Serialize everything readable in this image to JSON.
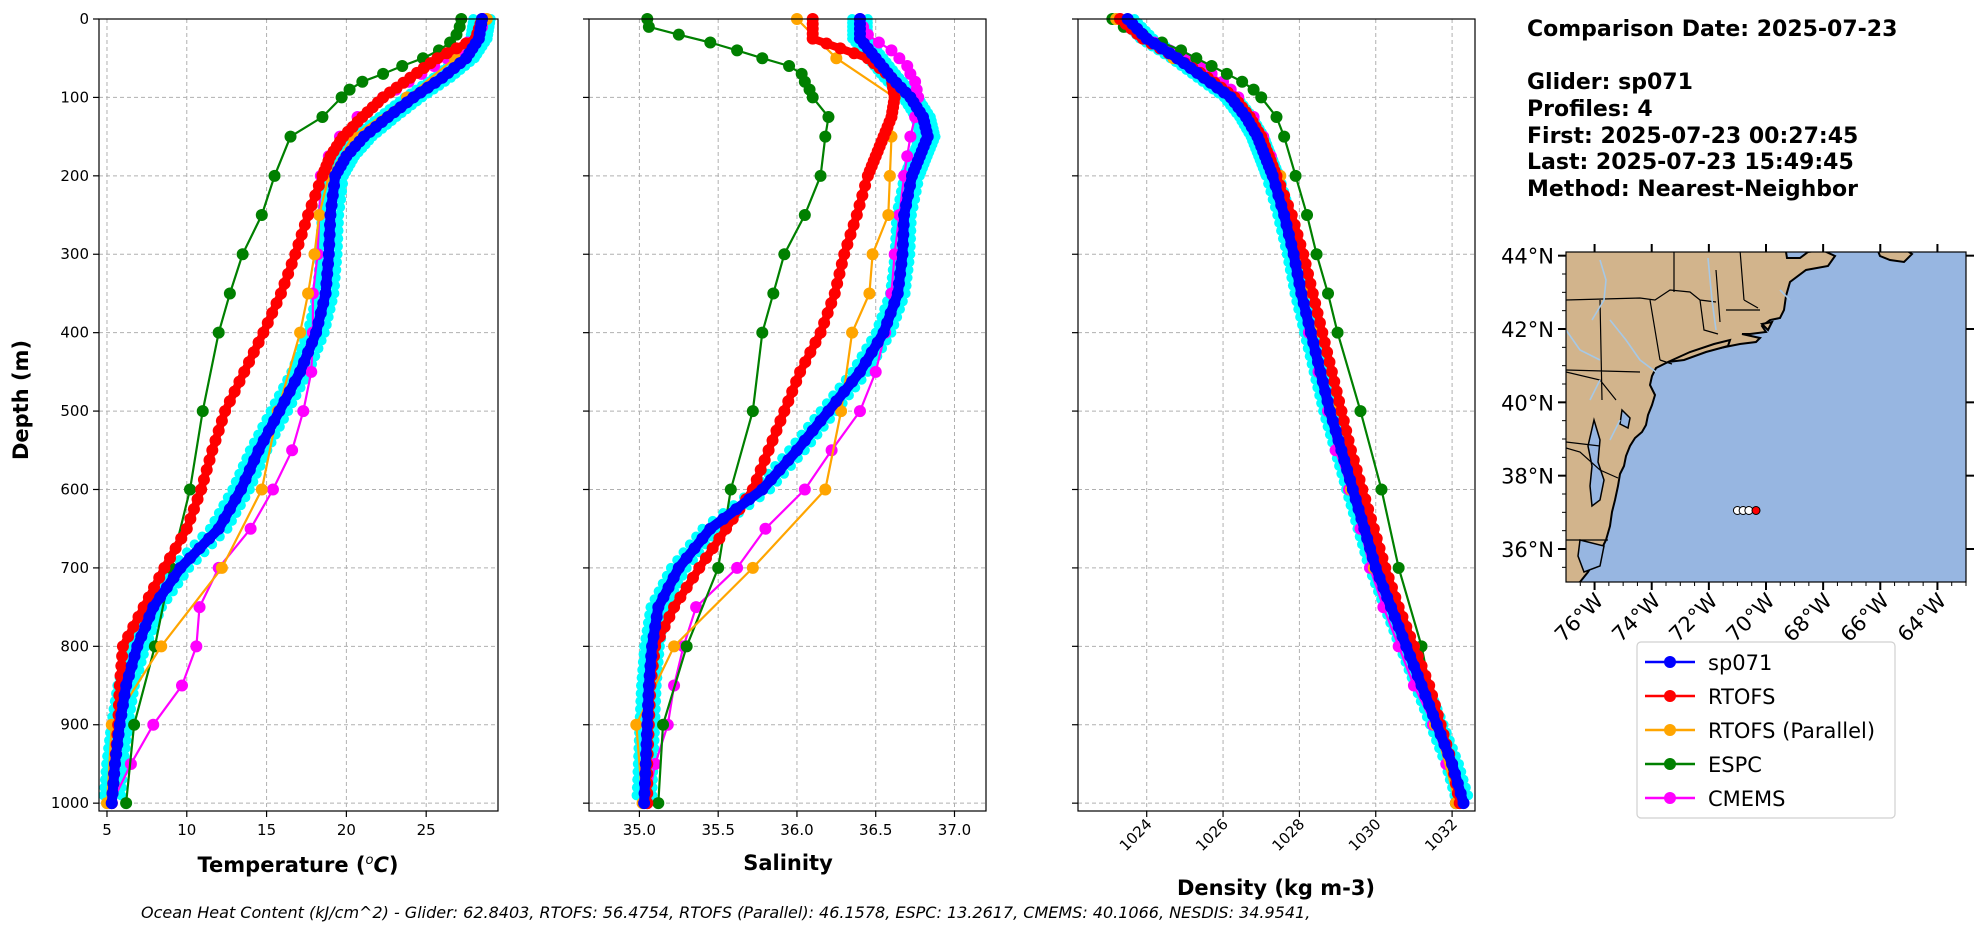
{
  "info": {
    "comparison_date": "Comparison Date: 2025-07-23",
    "glider": "Glider: sp071",
    "profiles": "Profiles: 4",
    "first": "First: 2025-07-23 00:27:45",
    "last": "Last: 2025-07-23 15:49:45",
    "method": "Method: Nearest-Neighbor"
  },
  "footer": "Ocean Heat Content (kJ/cm^2) - Glider: 62.8403,  RTOFS: 56.4754,  RTOFS (Parallel): 46.1578,  ESPC: 13.2617,  CMEMS: 40.1066,  NESDIS: 34.9541,",
  "colors": {
    "glider": "#0000ff",
    "glider_spread": "#00ffff",
    "rtofs": "#ff0000",
    "rtofs_parallel": "#ffa500",
    "espc": "#008000",
    "cmems": "#ff00ff",
    "land": "#d2b48c",
    "ocean": "#97b6e1",
    "rivers": "#a6c8e6"
  },
  "map": {
    "lat_ticks": [
      "36°N",
      "38°N",
      "40°N",
      "42°N",
      "44°N"
    ],
    "lon_ticks": [
      "76°W",
      "74°W",
      "72°W",
      "70°W",
      "68°W",
      "66°W",
      "64°W"
    ],
    "lat_range": [
      35.1,
      44.1
    ],
    "lon_range": [
      -77,
      -63
    ],
    "glider_points": [
      [
        -71.0,
        37.05
      ],
      [
        -70.8,
        37.05
      ],
      [
        -70.6,
        37.05
      ],
      [
        -70.35,
        37.05
      ]
    ]
  },
  "chart_data": [
    {
      "type": "line",
      "title": "",
      "xlabel": "Temperature (",
      "xlabel_italic": "o",
      "xlabel_unit": "C",
      "xlabel_end": ")",
      "ylabel": "Depth (m)",
      "xlim": [
        4.5,
        29.5
      ],
      "ylim": [
        1010,
        0
      ],
      "x_ticks": [
        5,
        10,
        15,
        20,
        25
      ],
      "y_ticks": [
        0,
        100,
        200,
        300,
        400,
        500,
        600,
        700,
        800,
        900,
        1000
      ],
      "series": [
        {
          "name": "sp071",
          "depth": [
            0,
            25,
            50,
            75,
            100,
            125,
            150,
            175,
            200,
            250,
            300,
            350,
            400,
            450,
            500,
            550,
            600,
            650,
            700,
            750,
            800,
            850,
            900,
            950,
            1000
          ],
          "values": [
            28.5,
            28.3,
            27.5,
            26.0,
            24.2,
            22.6,
            21.1,
            20.0,
            19.3,
            19.0,
            18.9,
            18.7,
            18.1,
            17.1,
            15.8,
            14.5,
            13.4,
            12.0,
            9.6,
            7.9,
            6.9,
            6.2,
            5.8,
            5.5,
            5.3
          ]
        },
        {
          "name": "RTOFS",
          "depth": [
            0,
            25,
            50,
            75,
            100,
            125,
            150,
            175,
            200,
            250,
            300,
            350,
            400,
            450,
            500,
            550,
            600,
            650,
            700,
            750,
            800,
            850,
            900,
            950,
            1000
          ],
          "values": [
            28.5,
            28.1,
            25.7,
            24.0,
            22.3,
            21.0,
            19.8,
            19.0,
            18.5,
            17.6,
            16.8,
            15.9,
            14.8,
            13.6,
            12.4,
            11.6,
            10.9,
            10.0,
            8.6,
            7.3,
            6.0,
            5.8,
            5.7,
            5.5,
            5.3
          ]
        },
        {
          "name": "RTOFS (Parallel)",
          "depth": [
            0,
            50,
            100,
            150,
            200,
            250,
            300,
            350,
            400,
            500,
            600,
            700,
            800,
            900,
            1000
          ],
          "values": [
            28.8,
            26.8,
            23.8,
            20.4,
            18.9,
            18.3,
            18.0,
            17.6,
            17.1,
            15.7,
            14.7,
            12.2,
            8.4,
            5.3,
            5.0
          ]
        },
        {
          "name": "ESPC",
          "depth": [
            0,
            10,
            20,
            30,
            40,
            50,
            60,
            70,
            80,
            90,
            100,
            125,
            150,
            200,
            250,
            300,
            350,
            400,
            500,
            600,
            700,
            800,
            900,
            1000
          ],
          "values": [
            27.2,
            27.1,
            26.9,
            26.5,
            25.8,
            24.8,
            23.5,
            22.3,
            21.0,
            20.2,
            19.7,
            18.5,
            16.5,
            15.5,
            14.7,
            13.5,
            12.7,
            12.0,
            11.0,
            10.2,
            9.0,
            8.0,
            6.7,
            6.2
          ]
        },
        {
          "name": "CMEMS",
          "depth": [
            0,
            10,
            20,
            30,
            40,
            50,
            60,
            70,
            80,
            90,
            100,
            125,
            150,
            175,
            200,
            250,
            300,
            350,
            400,
            450,
            500,
            550,
            600,
            650,
            700,
            750,
            800,
            850,
            900,
            950,
            1000
          ],
          "values": [
            28.6,
            28.5,
            28.2,
            27.6,
            27.0,
            26.3,
            25.5,
            24.7,
            23.9,
            23.1,
            22.3,
            20.7,
            19.6,
            18.9,
            18.4,
            18.3,
            18.2,
            17.9,
            17.9,
            17.8,
            17.3,
            16.6,
            15.4,
            14.0,
            12.0,
            10.8,
            10.6,
            9.7,
            7.9,
            6.5,
            5.3
          ]
        }
      ]
    },
    {
      "type": "line",
      "title": "",
      "xlabel": "Salinity",
      "xlim": [
        34.68,
        37.2
      ],
      "ylim": [
        1010,
        0
      ],
      "x_ticks": [
        35.0,
        35.5,
        36.0,
        36.5,
        37.0
      ],
      "x_tick_labels": [
        "35.0",
        "35.5",
        "36.0",
        "36.5",
        "37.0"
      ],
      "series": [
        {
          "name": "sp071",
          "depth": [
            0,
            25,
            50,
            75,
            100,
            125,
            150,
            175,
            200,
            250,
            300,
            350,
            400,
            450,
            500,
            550,
            600,
            650,
            700,
            750,
            800,
            850,
            900,
            950,
            1000
          ],
          "values": [
            36.4,
            36.4,
            36.5,
            36.6,
            36.72,
            36.8,
            36.83,
            36.78,
            36.73,
            36.68,
            36.67,
            36.64,
            36.55,
            36.4,
            36.2,
            36.0,
            35.78,
            35.45,
            35.25,
            35.12,
            35.08,
            35.06,
            35.05,
            35.04,
            35.03
          ]
        },
        {
          "name": "RTOFS",
          "depth": [
            0,
            25,
            50,
            75,
            100,
            125,
            150,
            175,
            200,
            250,
            300,
            350,
            400,
            450,
            500,
            550,
            600,
            650,
            700,
            750,
            800,
            850,
            900,
            950,
            1000
          ],
          "values": [
            36.1,
            36.1,
            36.45,
            36.6,
            36.62,
            36.6,
            36.55,
            36.5,
            36.45,
            36.38,
            36.3,
            36.24,
            36.15,
            36.02,
            35.92,
            35.82,
            35.72,
            35.55,
            35.38,
            35.22,
            35.1,
            35.07,
            35.06,
            35.05,
            35.05
          ]
        },
        {
          "name": "RTOFS (Parallel)",
          "depth": [
            0,
            50,
            100,
            150,
            200,
            250,
            300,
            350,
            400,
            500,
            600,
            700,
            800,
            900,
            1000
          ],
          "values": [
            36.0,
            36.25,
            36.62,
            36.6,
            36.59,
            36.58,
            36.48,
            36.46,
            36.35,
            36.28,
            36.18,
            35.72,
            35.22,
            34.98,
            35.02
          ]
        },
        {
          "name": "ESPC",
          "depth": [
            0,
            10,
            20,
            30,
            40,
            50,
            60,
            70,
            80,
            90,
            100,
            125,
            150,
            200,
            250,
            300,
            350,
            400,
            500,
            600,
            700,
            800,
            900,
            1000
          ],
          "values": [
            35.05,
            35.06,
            35.25,
            35.45,
            35.62,
            35.78,
            35.95,
            36.03,
            36.05,
            36.08,
            36.1,
            36.2,
            36.18,
            36.15,
            36.05,
            35.92,
            35.85,
            35.78,
            35.72,
            35.58,
            35.5,
            35.3,
            35.15,
            35.12
          ]
        },
        {
          "name": "CMEMS",
          "depth": [
            0,
            10,
            20,
            30,
            40,
            50,
            60,
            70,
            80,
            90,
            100,
            125,
            150,
            175,
            200,
            250,
            300,
            350,
            400,
            450,
            500,
            550,
            600,
            650,
            700,
            750,
            800,
            850,
            900,
            950,
            1000
          ],
          "values": [
            36.4,
            36.42,
            36.45,
            36.52,
            36.6,
            36.65,
            36.7,
            36.72,
            36.75,
            36.76,
            36.77,
            36.75,
            36.72,
            36.7,
            36.68,
            36.65,
            36.62,
            36.6,
            36.56,
            36.5,
            36.4,
            36.22,
            36.05,
            35.8,
            35.62,
            35.36,
            35.28,
            35.22,
            35.18,
            35.1,
            35.05
          ]
        }
      ]
    },
    {
      "type": "line",
      "title": "",
      "xlabel": "Density (kg m-3)",
      "xlim": [
        1022.2,
        1032.6
      ],
      "ylim": [
        1010,
        0
      ],
      "x_ticks": [
        1024,
        1026,
        1028,
        1030,
        1032
      ],
      "x_tick_labels": [
        "1024",
        "1026",
        "1028",
        "1030",
        "1032"
      ],
      "series": [
        {
          "name": "sp071",
          "depth": [
            0,
            25,
            50,
            75,
            100,
            125,
            150,
            175,
            200,
            250,
            300,
            350,
            400,
            450,
            500,
            550,
            600,
            650,
            700,
            750,
            800,
            850,
            900,
            950,
            1000
          ],
          "values": [
            1023.5,
            1024.0,
            1024.8,
            1025.5,
            1026.2,
            1026.6,
            1026.9,
            1027.1,
            1027.3,
            1027.6,
            1027.85,
            1028.05,
            1028.3,
            1028.55,
            1028.8,
            1029.1,
            1029.4,
            1029.7,
            1030.0,
            1030.4,
            1030.8,
            1031.2,
            1031.6,
            1032.0,
            1032.3
          ]
        },
        {
          "name": "RTOFS",
          "depth": [
            0,
            25,
            50,
            75,
            100,
            125,
            150,
            175,
            200,
            250,
            300,
            350,
            400,
            450,
            500,
            550,
            600,
            650,
            700,
            750,
            800,
            850,
            900,
            950,
            1000
          ],
          "values": [
            1023.3,
            1023.9,
            1024.8,
            1025.6,
            1026.3,
            1026.7,
            1027.0,
            1027.2,
            1027.4,
            1027.8,
            1028.1,
            1028.35,
            1028.6,
            1028.85,
            1029.1,
            1029.35,
            1029.65,
            1029.95,
            1030.25,
            1030.6,
            1031.0,
            1031.4,
            1031.7,
            1032.0,
            1032.2
          ]
        },
        {
          "name": "RTOFS (Parallel)",
          "depth": [
            0,
            50,
            100,
            150,
            200,
            250,
            300,
            350,
            400,
            500,
            600,
            700,
            800,
            900,
            1000
          ],
          "values": [
            1023.2,
            1024.7,
            1026.2,
            1027.0,
            1027.5,
            1027.75,
            1027.95,
            1028.15,
            1028.4,
            1028.9,
            1029.35,
            1029.95,
            1031.0,
            1031.55,
            1032.1
          ]
        },
        {
          "name": "ESPC",
          "depth": [
            0,
            10,
            20,
            30,
            40,
            50,
            60,
            70,
            80,
            90,
            100,
            125,
            150,
            200,
            250,
            300,
            350,
            400,
            500,
            600,
            700,
            800,
            900,
            1000
          ],
          "values": [
            1023.1,
            1023.4,
            1023.9,
            1024.4,
            1024.9,
            1025.3,
            1025.7,
            1026.1,
            1026.5,
            1026.8,
            1027.0,
            1027.4,
            1027.6,
            1027.9,
            1028.2,
            1028.45,
            1028.75,
            1029.0,
            1029.6,
            1030.15,
            1030.6,
            1031.2,
            1031.6,
            1032.1
          ]
        },
        {
          "name": "CMEMS",
          "depth": [
            0,
            10,
            20,
            30,
            40,
            50,
            60,
            70,
            80,
            90,
            100,
            125,
            150,
            175,
            200,
            250,
            300,
            350,
            400,
            450,
            500,
            550,
            600,
            650,
            700,
            750,
            800,
            850,
            900,
            950,
            1000
          ],
          "values": [
            1023.3,
            1023.5,
            1023.8,
            1024.2,
            1024.6,
            1025.0,
            1025.4,
            1025.7,
            1026.0,
            1026.2,
            1026.4,
            1026.8,
            1027.05,
            1027.25,
            1027.4,
            1027.65,
            1027.85,
            1028.05,
            1028.25,
            1028.5,
            1028.75,
            1028.95,
            1029.3,
            1029.6,
            1029.85,
            1030.2,
            1030.6,
            1031.0,
            1031.5,
            1031.85,
            1032.1
          ]
        }
      ]
    }
  ]
}
